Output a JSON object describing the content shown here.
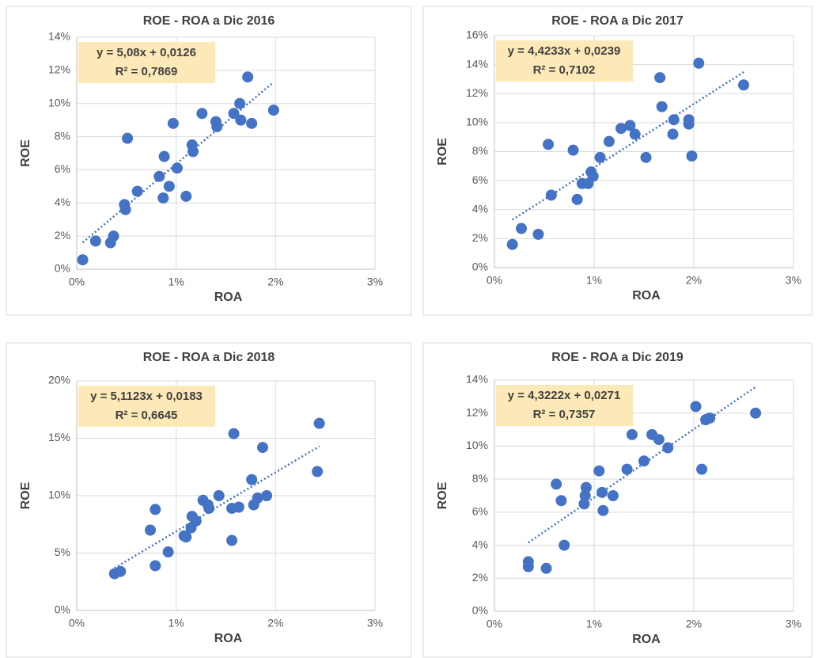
{
  "chart_data": [
    {
      "type": "scatter",
      "title": "ROE - ROA a Dic 2016",
      "x_label": "ROA",
      "y_label": "ROE",
      "color": "#4472c4",
      "grid": true,
      "equation": "y = 5,08x + 0,0126",
      "r_squared": "R² = 0,7869",
      "xlim": [
        0,
        3
      ],
      "xticks": [
        {
          "value": 0,
          "label": "0%"
        },
        {
          "value": 1,
          "label": "1%"
        },
        {
          "value": 2,
          "label": "2%"
        },
        {
          "value": 3,
          "label": "3%"
        }
      ],
      "ylim": [
        0,
        14
      ],
      "yticks": [
        {
          "value": 0,
          "label": "0%"
        },
        {
          "value": 2,
          "label": "2%"
        },
        {
          "value": 4,
          "label": "4%"
        },
        {
          "value": 6,
          "label": "6%"
        },
        {
          "value": 8,
          "label": "8%"
        },
        {
          "value": 10,
          "label": "10%"
        },
        {
          "value": 12,
          "label": "12%"
        },
        {
          "value": 14,
          "label": "14%"
        }
      ],
      "x": [
        0.06,
        0.19,
        0.34,
        0.37,
        0.48,
        0.49,
        0.51,
        0.61,
        0.83,
        0.87,
        0.88,
        0.93,
        0.97,
        1.01,
        1.1,
        1.16,
        1.17,
        1.26,
        1.4,
        1.41,
        1.58,
        1.64,
        1.65,
        1.72,
        1.76,
        1.98
      ],
      "values": [
        0.57,
        1.7,
        1.6,
        2.0,
        3.9,
        3.6,
        7.9,
        4.7,
        5.6,
        4.3,
        6.8,
        5.0,
        8.8,
        6.1,
        4.4,
        7.5,
        7.1,
        9.4,
        8.9,
        8.6,
        9.4,
        10.0,
        9.0,
        11.6,
        8.8,
        9.6
      ]
    },
    {
      "type": "scatter",
      "title": "ROE - ROA a Dic 2017",
      "x_label": "ROA",
      "y_label": "ROE",
      "color": "#4472c4",
      "grid": true,
      "equation": "y = 4,4233x + 0,0239",
      "r_squared": "R² = 0,7102",
      "xlim": [
        0,
        3
      ],
      "xticks": [
        {
          "value": 0,
          "label": "0%"
        },
        {
          "value": 1,
          "label": "1%"
        },
        {
          "value": 2,
          "label": "2%"
        },
        {
          "value": 3,
          "label": "3%"
        }
      ],
      "ylim": [
        0,
        16
      ],
      "yticks": [
        {
          "value": 0,
          "label": "0%"
        },
        {
          "value": 2,
          "label": "2%"
        },
        {
          "value": 4,
          "label": "4%"
        },
        {
          "value": 6,
          "label": "6%"
        },
        {
          "value": 8,
          "label": "8%"
        },
        {
          "value": 10,
          "label": "10%"
        },
        {
          "value": 12,
          "label": "12%"
        },
        {
          "value": 14,
          "label": "14%"
        },
        {
          "value": 16,
          "label": "16%"
        }
      ],
      "x": [
        0.18,
        0.27,
        0.44,
        0.54,
        0.57,
        0.79,
        0.83,
        0.88,
        0.94,
        0.97,
        0.99,
        1.06,
        1.15,
        1.27,
        1.36,
        1.41,
        1.52,
        1.66,
        1.68,
        1.79,
        1.8,
        1.95,
        1.95,
        1.98,
        2.05,
        2.5
      ],
      "values": [
        1.6,
        2.7,
        2.3,
        8.5,
        5.0,
        8.1,
        4.7,
        5.8,
        5.8,
        6.6,
        6.3,
        7.6,
        8.7,
        9.6,
        9.8,
        9.2,
        7.6,
        13.1,
        11.1,
        9.2,
        10.2,
        10.2,
        9.9,
        7.7,
        14.1,
        12.6
      ]
    },
    {
      "type": "scatter",
      "title": "ROE - ROA a Dic 2018",
      "x_label": "ROA",
      "y_label": "ROE",
      "color": "#4472c4",
      "grid": true,
      "equation": "y = 5,1123x + 0,0183",
      "r_squared": "R² = 0,6645",
      "xlim": [
        0,
        3
      ],
      "xticks": [
        {
          "value": 0,
          "label": "0%"
        },
        {
          "value": 1,
          "label": "1%"
        },
        {
          "value": 2,
          "label": "2%"
        },
        {
          "value": 3,
          "label": "3%"
        }
      ],
      "ylim": [
        0,
        20
      ],
      "yticks": [
        {
          "value": 0,
          "label": "0%"
        },
        {
          "value": 5,
          "label": "5%"
        },
        {
          "value": 10,
          "label": "10%"
        },
        {
          "value": 15,
          "label": "15%"
        },
        {
          "value": 20,
          "label": "20%"
        }
      ],
      "x": [
        0.38,
        0.44,
        0.74,
        0.79,
        0.79,
        0.92,
        1.08,
        1.1,
        1.15,
        1.16,
        1.2,
        1.27,
        1.32,
        1.33,
        1.43,
        1.56,
        1.56,
        1.58,
        1.63,
        1.76,
        1.78,
        1.82,
        1.87,
        1.91,
        2.42,
        2.44
      ],
      "values": [
        3.2,
        3.4,
        7.0,
        8.8,
        3.9,
        5.1,
        6.5,
        6.4,
        7.2,
        8.2,
        7.8,
        9.6,
        9.2,
        8.9,
        10.0,
        8.9,
        6.1,
        15.4,
        9.0,
        11.4,
        9.2,
        9.8,
        14.2,
        10.0,
        12.1,
        16.3
      ]
    },
    {
      "type": "scatter",
      "title": "ROE - ROA a Dic 2019",
      "x_label": "ROA",
      "y_label": "ROE",
      "color": "#4472c4",
      "grid": true,
      "equation": "y = 4,3222x + 0,0271",
      "r_squared": "R² = 0,7357",
      "xlim": [
        0,
        3
      ],
      "xticks": [
        {
          "value": 0,
          "label": "0%"
        },
        {
          "value": 1,
          "label": "1%"
        },
        {
          "value": 2,
          "label": "2%"
        },
        {
          "value": 3,
          "label": "3%"
        }
      ],
      "ylim": [
        0,
        14
      ],
      "yticks": [
        {
          "value": 0,
          "label": "0%"
        },
        {
          "value": 2,
          "label": "2%"
        },
        {
          "value": 4,
          "label": "4%"
        },
        {
          "value": 6,
          "label": "6%"
        },
        {
          "value": 8,
          "label": "8%"
        },
        {
          "value": 10,
          "label": "10%"
        },
        {
          "value": 12,
          "label": "12%"
        },
        {
          "value": 14,
          "label": "14%"
        }
      ],
      "x": [
        0.34,
        0.34,
        0.52,
        0.62,
        0.67,
        0.7,
        0.9,
        0.91,
        0.92,
        1.05,
        1.08,
        1.09,
        1.19,
        1.33,
        1.38,
        1.5,
        1.58,
        1.65,
        1.74,
        2.02,
        2.08,
        2.12,
        2.16,
        2.62
      ],
      "values": [
        3.0,
        2.7,
        2.6,
        7.7,
        6.7,
        4.0,
        6.5,
        7.0,
        7.5,
        8.5,
        7.2,
        6.1,
        7.0,
        8.6,
        10.7,
        9.1,
        10.7,
        10.4,
        9.9,
        12.4,
        8.6,
        11.6,
        11.7,
        12.0
      ]
    }
  ]
}
